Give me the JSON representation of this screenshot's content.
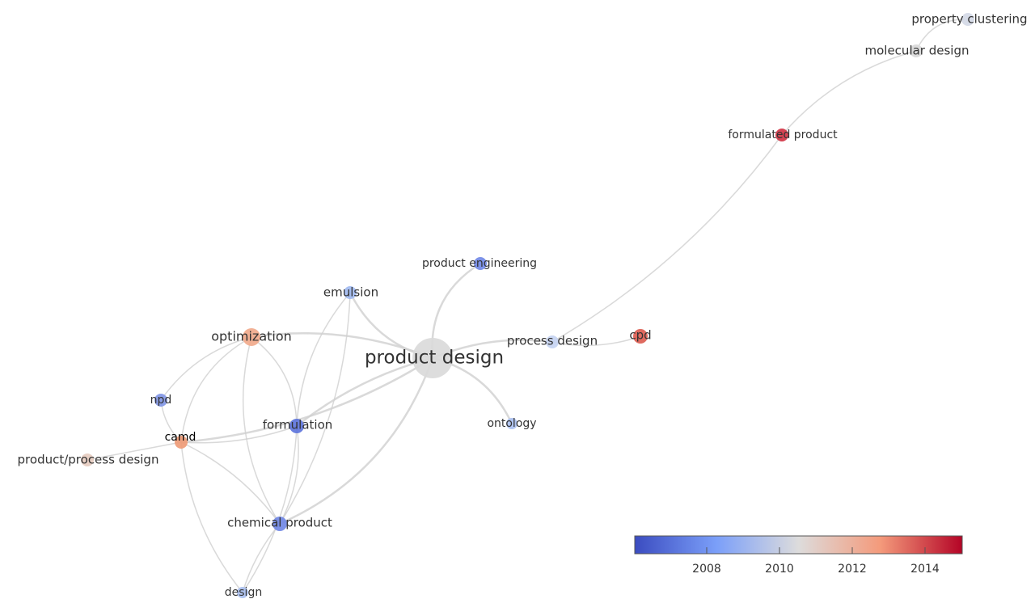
{
  "nodes": [
    {
      "label": "property clustering"
    },
    {
      "label": "molecular design"
    },
    {
      "label": "formulated product"
    },
    {
      "label": "product engineering"
    },
    {
      "label": "emulsion"
    },
    {
      "label": "optimization"
    },
    {
      "label": "product design"
    },
    {
      "label": "process design"
    },
    {
      "label": "cpd"
    },
    {
      "label": "npd"
    },
    {
      "label": "formulation"
    },
    {
      "label": "ontology"
    },
    {
      "label": "camd"
    },
    {
      "label": "product/process design"
    },
    {
      "label": "chemical product"
    },
    {
      "label": "design"
    }
  ],
  "legend": {
    "ticks": [
      "2008",
      "2010",
      "2012",
      "2014"
    ]
  }
}
